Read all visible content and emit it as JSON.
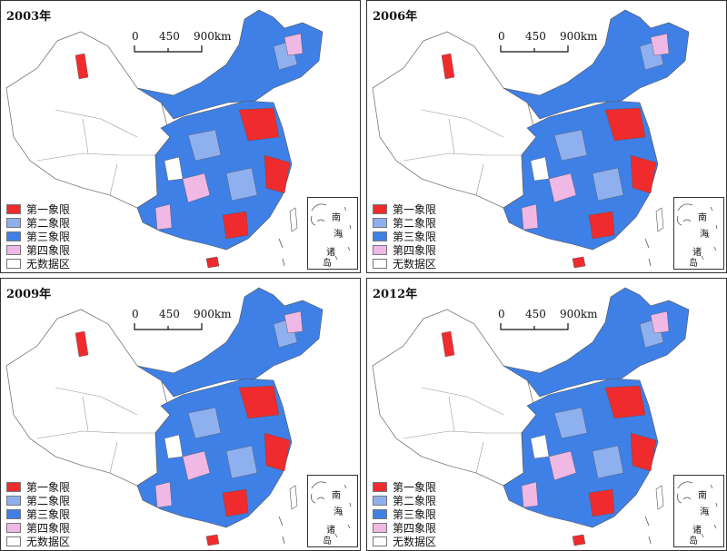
{
  "panels": [
    {
      "year": "2003年"
    },
    {
      "year": "2006年"
    },
    {
      "year": "2009年"
    },
    {
      "year": "2012年"
    }
  ],
  "scale_bar": {
    "labels": [
      "0",
      "450",
      "900km"
    ]
  },
  "legend": [
    {
      "label": "第一象限",
      "color": "#ef2b2d"
    },
    {
      "label": "第二象限",
      "color": "#8fb0ef"
    },
    {
      "label": "第三象限",
      "color": "#3f80e6"
    },
    {
      "label": "第四象限",
      "color": "#f0b8e4"
    },
    {
      "label": "无数据区",
      "color": "#ffffff"
    }
  ],
  "inset": {
    "chars": [
      "南",
      "海",
      "诸",
      "岛"
    ]
  },
  "colors": {
    "outline": "#555555",
    "blue": "#3f80e6"
  }
}
